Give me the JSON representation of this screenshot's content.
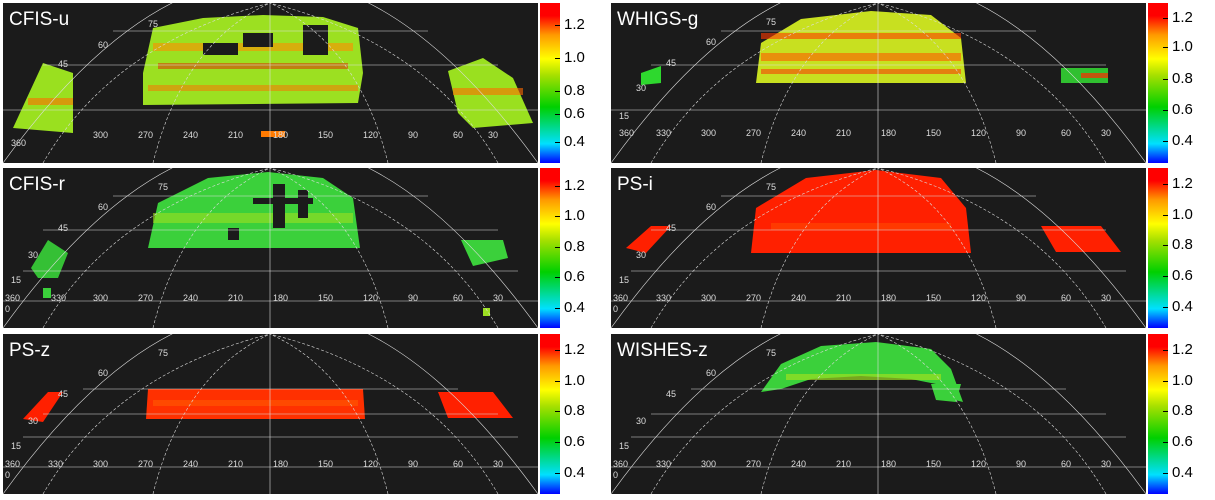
{
  "colorbar": {
    "ticks": [
      "1.2",
      "1.0",
      "0.8",
      "0.6",
      "0.4"
    ],
    "tick_values": [
      1.2,
      1.0,
      0.8,
      0.6,
      0.4
    ],
    "range": [
      0.3,
      1.3
    ],
    "colors": [
      "#0000ff",
      "#00e0ff",
      "#00d000",
      "#a8e000",
      "#ffff00",
      "#ff9a00",
      "#ff0000"
    ]
  },
  "grid_labels": {
    "ra": [
      "360",
      "330",
      "300",
      "270",
      "240",
      "210",
      "180",
      "150",
      "120",
      "90",
      "60",
      "30"
    ],
    "dec": [
      "75",
      "60",
      "45",
      "30",
      "15",
      "0"
    ]
  },
  "panels": [
    {
      "id": "cfis-u",
      "label": "CFIS-u",
      "color": "#88dd22"
    },
    {
      "id": "whigs-g",
      "label": "WHIGS-g",
      "color": "#cfe21e"
    },
    {
      "id": "cfis-r",
      "label": "CFIS-r",
      "color": "#33cc33"
    },
    {
      "id": "ps-i",
      "label": "PS-i",
      "color": "#ff2200"
    },
    {
      "id": "ps-z",
      "label": "PS-z",
      "color": "#ff3300"
    },
    {
      "id": "wishes-z",
      "label": "WISHES-z",
      "color": "#44cc33"
    }
  ]
}
